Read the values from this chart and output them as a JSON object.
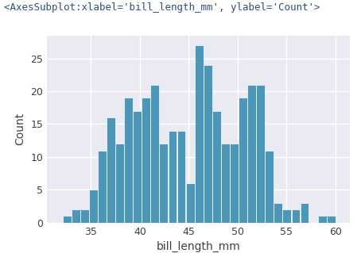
{
  "xlabel": "bill_length_mm",
  "ylabel": "Count",
  "title_text": "<AxesSubplot:xlabel='bill_length_mm', ylabel='Count'>",
  "bar_color": "#4c96b7",
  "bar_edgecolor": "white",
  "axes_facecolor": "#eaeaf2",
  "figure_facecolor": "#ffffff",
  "grid_color": "white",
  "xlim": [
    30.5,
    61.5
  ],
  "ylim": [
    0,
    28.5
  ],
  "yticks": [
    0,
    5,
    10,
    15,
    20,
    25
  ],
  "xticks": [
    35,
    40,
    45,
    50,
    55,
    60
  ],
  "tick_label_size": 9,
  "label_fontsize": 10,
  "title_fontsize": 9,
  "bin_edges": [
    32.1,
    33.0,
    33.9,
    34.8,
    35.7,
    36.6,
    37.5,
    38.4,
    39.3,
    40.2,
    41.1,
    42.0,
    42.9,
    43.8,
    44.7,
    45.6,
    46.5,
    47.4,
    48.3,
    49.2,
    50.1,
    51.0,
    51.9,
    52.8,
    53.7,
    54.6,
    55.5,
    56.4,
    57.3,
    58.2,
    59.1,
    60.0
  ],
  "bar_heights": [
    1,
    2,
    2,
    5,
    11,
    16,
    12,
    19,
    17,
    19,
    21,
    12,
    14,
    14,
    6,
    27,
    24,
    17,
    12,
    12,
    19,
    21,
    21,
    11,
    3,
    2,
    2,
    3,
    0,
    1,
    1
  ]
}
